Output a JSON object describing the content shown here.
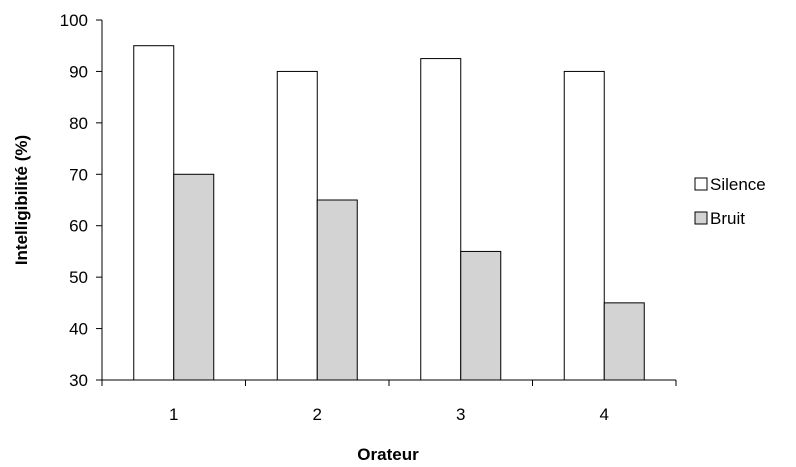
{
  "chart_data": {
    "type": "bar",
    "title": "",
    "xlabel": "Orateur",
    "ylabel": "Intelligibilité (%)",
    "categories": [
      "1",
      "2",
      "3",
      "4"
    ],
    "ylim": [
      30,
      100
    ],
    "yticks": [
      30,
      40,
      50,
      60,
      70,
      80,
      90,
      100
    ],
    "grid": false,
    "legend_position": "right",
    "series": [
      {
        "name": "Silence",
        "values": [
          95,
          90,
          92.5,
          90
        ],
        "color": "#ffffff"
      },
      {
        "name": "Bruit",
        "values": [
          70,
          65,
          55,
          45
        ],
        "color": "#d3d3d3"
      }
    ]
  }
}
